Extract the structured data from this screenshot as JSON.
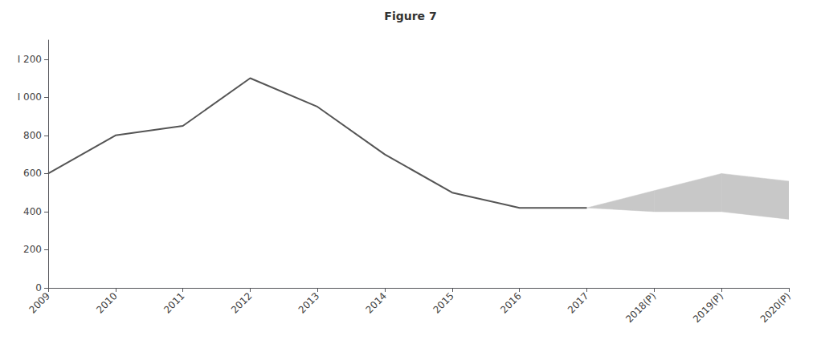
{
  "chart_data": {
    "type": "line",
    "title": "Figure 7",
    "categories": [
      "2009",
      "2010",
      "2011",
      "2012",
      "2013",
      "2014",
      "2015",
      "2016",
      "2017",
      "2018(P)",
      "2019(P)",
      "2020(P)"
    ],
    "series": [
      {
        "type": "line",
        "color": "#555555",
        "values": [
          600,
          800,
          850,
          1100,
          950,
          700,
          500,
          420,
          420,
          null,
          null,
          null
        ]
      },
      {
        "type": "band",
        "color": "#c8c8c8",
        "lower": [
          null,
          null,
          null,
          null,
          null,
          null,
          null,
          null,
          420,
          400,
          400,
          360
        ],
        "upper": [
          null,
          null,
          null,
          null,
          null,
          null,
          null,
          null,
          420,
          510,
          600,
          560
        ]
      }
    ],
    "ylim": [
      0,
      1300
    ],
    "yticks": [
      0,
      200,
      400,
      600,
      800,
      {
        "value": 1000,
        "label": "I 000"
      },
      {
        "value": 1200,
        "label": "I 200"
      }
    ],
    "grid": false
  }
}
